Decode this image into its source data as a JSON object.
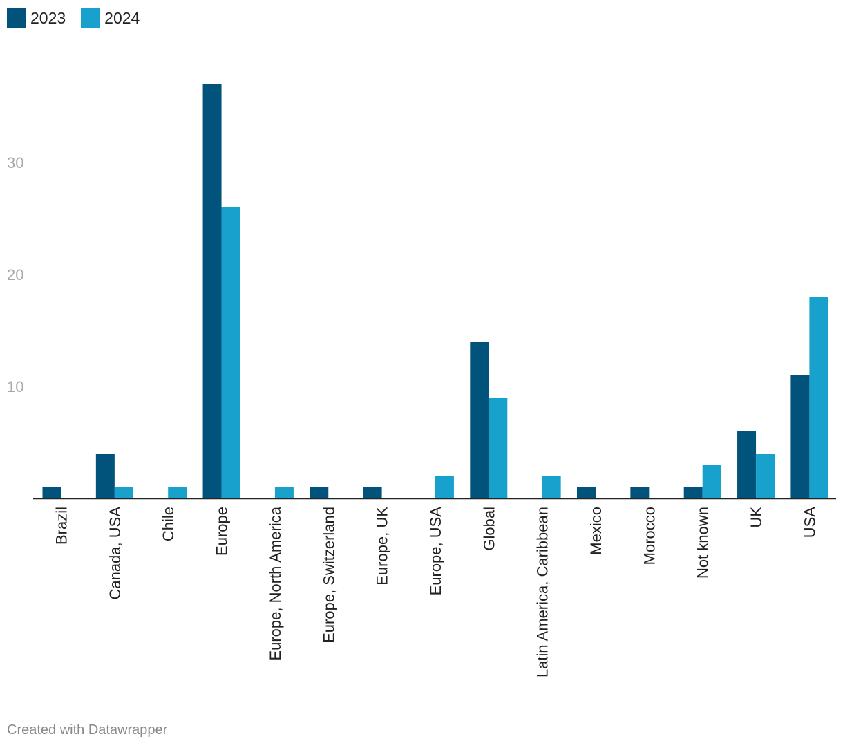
{
  "chart_data": {
    "type": "bar",
    "title": "",
    "xlabel": "",
    "ylabel": "",
    "ylim": [
      0,
      40
    ],
    "yticks": [
      10,
      20,
      30
    ],
    "grid": false,
    "legend_position": "top-left",
    "categories": [
      "Brazil",
      "Canada, USA",
      "Chile",
      "Europe",
      "Europe, North America",
      "Europe, Switzerland",
      "Europe, UK",
      "Europe, USA",
      "Global",
      "Latin America, Caribbean",
      "Mexico",
      "Morocco",
      "Not known",
      "UK",
      "USA"
    ],
    "series": [
      {
        "name": "2023",
        "color": "#02537c",
        "values": [
          1,
          4,
          0,
          37,
          0,
          1,
          1,
          0,
          14,
          0,
          1,
          1,
          1,
          6,
          11
        ]
      },
      {
        "name": "2024",
        "color": "#18a1cd",
        "values": [
          0,
          1,
          1,
          26,
          1,
          0,
          0,
          2,
          9,
          2,
          0,
          0,
          3,
          4,
          18
        ]
      }
    ]
  },
  "footer": {
    "credit": "Created with Datawrapper"
  }
}
